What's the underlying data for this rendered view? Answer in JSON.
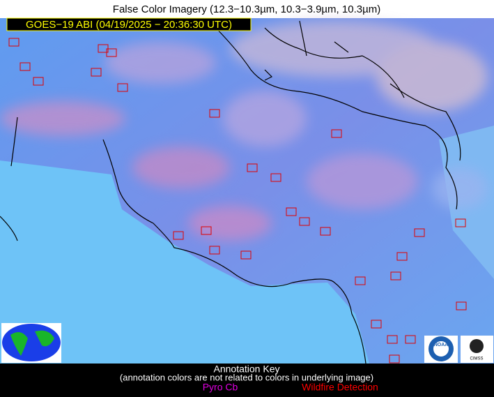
{
  "header": {
    "title": "False Color Imagery (12.3−10.3µm, 10.3−3.9µm, 10.3µm)"
  },
  "image": {
    "label": "GOES−19 ABI (04/19/2025 − 20:36:30 UTC)"
  },
  "logos": {
    "noaa": "NOAA",
    "cimss": "CIMSS"
  },
  "key": {
    "title": "Annotation Key",
    "note": "(annotation colors are not related to colors in underlying image)",
    "pyro": "Pyro Cb",
    "wildfire": "Wildfire Detection"
  }
}
